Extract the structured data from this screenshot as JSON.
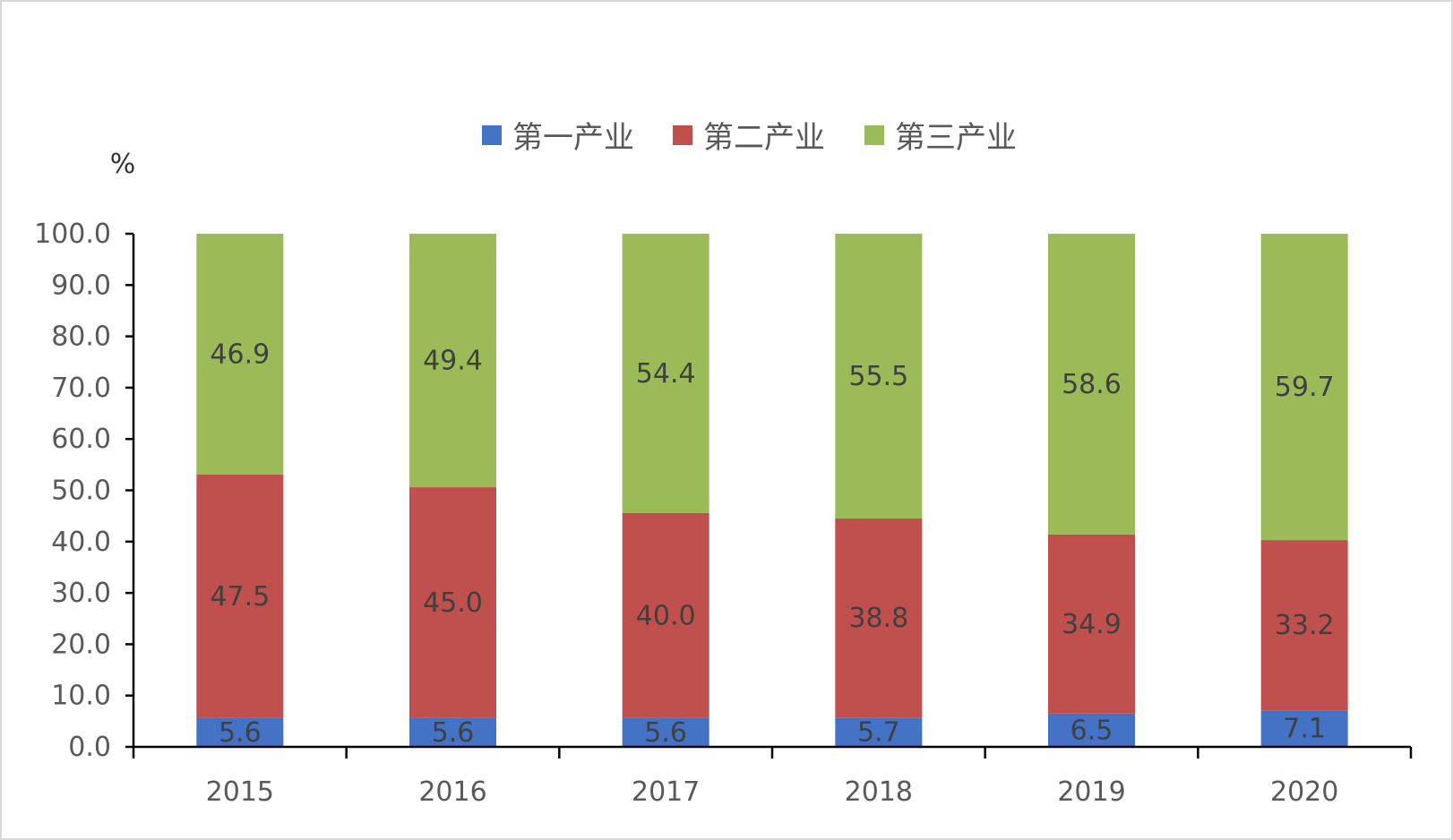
{
  "chart_data": {
    "type": "bar",
    "stacked": true,
    "title": "",
    "xlabel": "",
    "ylabel": "%",
    "ylim": [
      0,
      100
    ],
    "yticks": [
      "0.0",
      "10.0",
      "20.0",
      "30.0",
      "40.0",
      "50.0",
      "60.0",
      "70.0",
      "80.0",
      "90.0",
      "100.0"
    ],
    "categories": [
      "2015",
      "2016",
      "2017",
      "2018",
      "2019",
      "2020"
    ],
    "series": [
      {
        "name": "第一产业",
        "color": "#4472c4",
        "values": [
          5.6,
          5.6,
          5.6,
          5.7,
          6.5,
          7.1
        ]
      },
      {
        "name": "第二产业",
        "color": "#c0504d",
        "values": [
          47.5,
          45.0,
          40.0,
          38.8,
          34.9,
          33.2
        ]
      },
      {
        "name": "第三产业",
        "color": "#9bbb59",
        "values": [
          46.9,
          49.4,
          54.4,
          55.5,
          58.6,
          59.7
        ]
      }
    ],
    "data_labels": [
      [
        "5.6",
        "5.6",
        "5.6",
        "5.7",
        "6.5",
        "7.1"
      ],
      [
        "47.5",
        "45.0",
        "40.0",
        "38.8",
        "34.9",
        "33.2"
      ],
      [
        "46.9",
        "49.4",
        "54.4",
        "55.5",
        "58.6",
        "59.7"
      ]
    ],
    "legend_position": "top-center",
    "grid": false
  }
}
